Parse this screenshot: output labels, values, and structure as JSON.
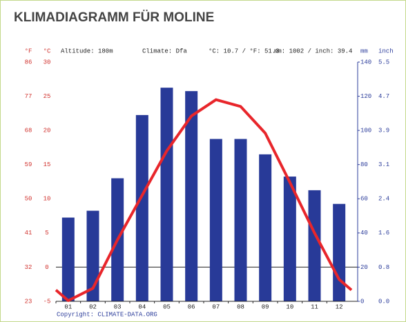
{
  "chart_data": {
    "type": "climate",
    "title": "KLIMADIAGRAMM FÜR MOLINE",
    "f_unit": "°F",
    "c_unit": "°C",
    "mm_unit": "mm",
    "inch_unit": "inch",
    "altitude": "Altitude: 180m",
    "climate": "Climate: Dfa",
    "avg_temp": "°C: 10.7 / °F: 51.3",
    "total_precip": "mm: 1002 / inch: 39.4",
    "copyright": "Copyright: CLIMATE-DATA.ORG",
    "categories": [
      "01",
      "02",
      "03",
      "04",
      "05",
      "06",
      "07",
      "08",
      "09",
      "10",
      "11",
      "12"
    ],
    "series": [
      {
        "type": "bar",
        "color": "#283a98",
        "axis": "y2",
        "values": [
          49,
          53,
          72,
          109,
          125,
          123,
          95,
          95,
          86,
          73,
          65,
          57
        ]
      },
      {
        "type": "line",
        "color": "#e8262b",
        "values": [
          -4.9,
          -3.1,
          4.0,
          10.5,
          17.0,
          22.1,
          24.5,
          23.5,
          19.6,
          12.4,
          5.0,
          -1.8
        ]
      }
    ],
    "ylim": [
      -5,
      30
    ],
    "yticks": [
      -5,
      0,
      5,
      10,
      15,
      20,
      25,
      30
    ],
    "flim": [
      23,
      86
    ],
    "fticks": [
      23,
      32,
      41,
      50,
      59,
      68,
      77,
      86
    ],
    "y2lim": [
      0,
      140
    ],
    "y2ticks": [
      0,
      20,
      40,
      60,
      80,
      100,
      120,
      140
    ],
    "inchlim": [
      0,
      5.5118
    ],
    "inchticks": [
      {
        "value": 0,
        "label": "0.0"
      },
      {
        "value": 0.7874,
        "label": "0.8"
      },
      {
        "value": 1.5748,
        "label": "1.6"
      },
      {
        "value": 2.3622,
        "label": "2.4"
      },
      {
        "value": 3.1496,
        "label": "3.1"
      },
      {
        "value": 3.937,
        "label": "3.9"
      },
      {
        "value": 4.7244,
        "label": "4.7"
      },
      {
        "value": 5.5118,
        "label": "5.5"
      }
    ]
  }
}
